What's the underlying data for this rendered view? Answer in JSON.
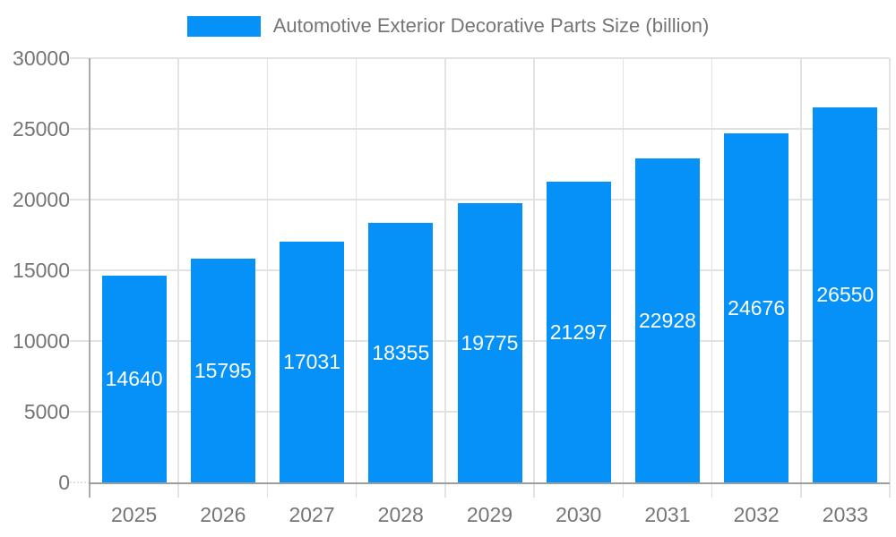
{
  "legend": {
    "label": "Automotive Exterior Decorative Parts Size (billion)"
  },
  "colors": {
    "bar": "#0591f7",
    "grid": "#e2e2e2",
    "axis_line": "#ababab",
    "baseline": "#9e9e9e",
    "tick_text": "#757575",
    "value_label": "#ffffff",
    "background": "#ffffff"
  },
  "chart_data": {
    "type": "bar",
    "title": "Automotive Exterior Decorative Parts Size (billion)",
    "categories": [
      "2025",
      "2026",
      "2027",
      "2028",
      "2029",
      "2030",
      "2031",
      "2032",
      "2033"
    ],
    "values": [
      14640,
      15795,
      17031,
      18355,
      19775,
      21297,
      22928,
      24676,
      26550
    ],
    "series": [
      {
        "name": "Automotive Exterior Decorative Parts Size (billion)",
        "values": [
          14640,
          15795,
          17031,
          18355,
          19775,
          21297,
          22928,
          24676,
          26550
        ]
      }
    ],
    "xlabel": "",
    "ylabel": "",
    "ylim": [
      0,
      30000
    ],
    "yticks": [
      0,
      5000,
      10000,
      15000,
      20000,
      25000,
      30000
    ],
    "grid": true,
    "legend_position": "top-center",
    "value_labels": "inside-center",
    "value_label_color": "#ffffff"
  }
}
